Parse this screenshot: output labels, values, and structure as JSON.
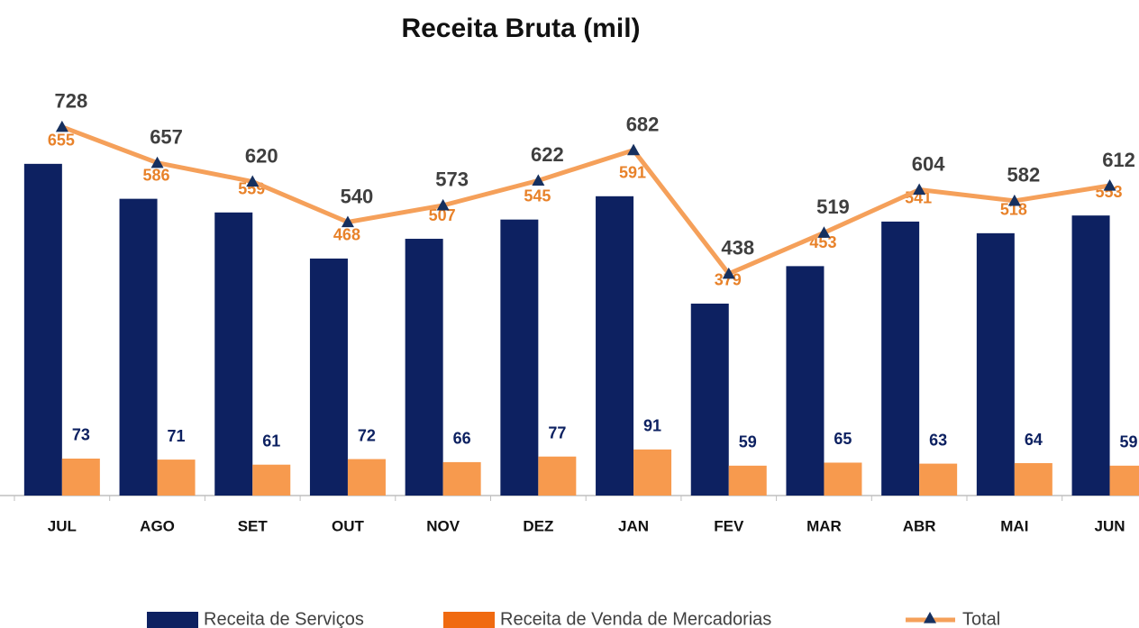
{
  "chart_data": {
    "type": "bar+line",
    "title": "Receita Bruta (mil)",
    "categories": [
      "JUL",
      "AGO",
      "SET",
      "OUT",
      "NOV",
      "DEZ",
      "JAN",
      "FEV",
      "MAR",
      "ABR",
      "MAI",
      "JUN"
    ],
    "series": [
      {
        "name": "Receita de Serviços",
        "type": "bar",
        "color": "#0d2161",
        "label_color": "#e8822a",
        "values": [
          655,
          586,
          559,
          468,
          507,
          545,
          591,
          379,
          453,
          541,
          518,
          553
        ]
      },
      {
        "name": "Receita de Venda de Mercadorias",
        "type": "bar",
        "color": "#f79a4e",
        "legend_color": "#f06a10",
        "label_color": "#0d2161",
        "values": [
          73,
          71,
          61,
          72,
          66,
          77,
          91,
          59,
          65,
          63,
          64,
          59
        ]
      },
      {
        "name": "Total",
        "type": "line",
        "color": "#f5a05a",
        "marker_color": "#16305f",
        "label_color": "#3f3f3f",
        "values": [
          728,
          657,
          620,
          540,
          573,
          622,
          682,
          438,
          519,
          604,
          582,
          612
        ]
      }
    ],
    "ylim": [
      0,
      870
    ],
    "legend": "bottom"
  }
}
